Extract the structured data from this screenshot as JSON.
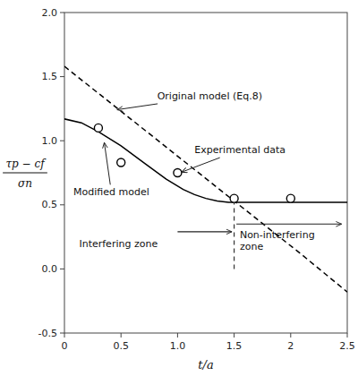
{
  "chart_data": {
    "type": "line",
    "xlabel": "t/a",
    "ylabel": [
      "τp − cf",
      "σn"
    ],
    "xlim": [
      0,
      2.5
    ],
    "ylim": [
      -0.5,
      2.0
    ],
    "xticks": [
      0,
      0.5,
      {
        "value": 1.0,
        "label": "1.0"
      },
      1.5,
      2,
      2.5
    ],
    "yticks": [
      -0.5,
      {
        "value": 0,
        "label": "0.0"
      },
      0.5,
      {
        "value": 1.0,
        "label": "1.0"
      },
      1.5,
      {
        "value": 2.0,
        "label": "2.0"
      }
    ],
    "grid": false,
    "series": [
      {
        "type": "line",
        "line_style": "dashed",
        "color": "black",
        "x": [
          0.0,
          0.3,
          0.6,
          0.9,
          1.2,
          1.5,
          1.8,
          2.1,
          2.5
        ],
        "values": [
          1.58,
          1.37,
          1.16,
          0.95,
          0.74,
          0.53,
          0.32,
          0.11,
          -0.18
        ]
      },
      {
        "type": "line",
        "line_style": "solid",
        "color": "black",
        "x": [
          0.0,
          0.15,
          0.3,
          0.5,
          0.7,
          0.9,
          1.05,
          1.15,
          1.25,
          1.35,
          1.45,
          1.5,
          2.5
        ],
        "values": [
          1.17,
          1.14,
          1.07,
          0.96,
          0.83,
          0.7,
          0.62,
          0.58,
          0.55,
          0.53,
          0.52,
          0.52,
          0.52
        ]
      },
      {
        "type": "scatter",
        "marker": "circle",
        "color": "black",
        "x": [
          0.3,
          0.5,
          1.0,
          1.5,
          2.0
        ],
        "values": [
          1.1,
          0.83,
          0.75,
          0.55,
          0.55
        ]
      }
    ],
    "vline": {
      "x": 1.5,
      "y": [
        0.0,
        0.52
      ]
    },
    "annotations": [
      "Original model (Eq.8)",
      "Experimental data",
      "Modified model",
      "Interfering zone",
      "Non-interfering\nzone"
    ]
  }
}
